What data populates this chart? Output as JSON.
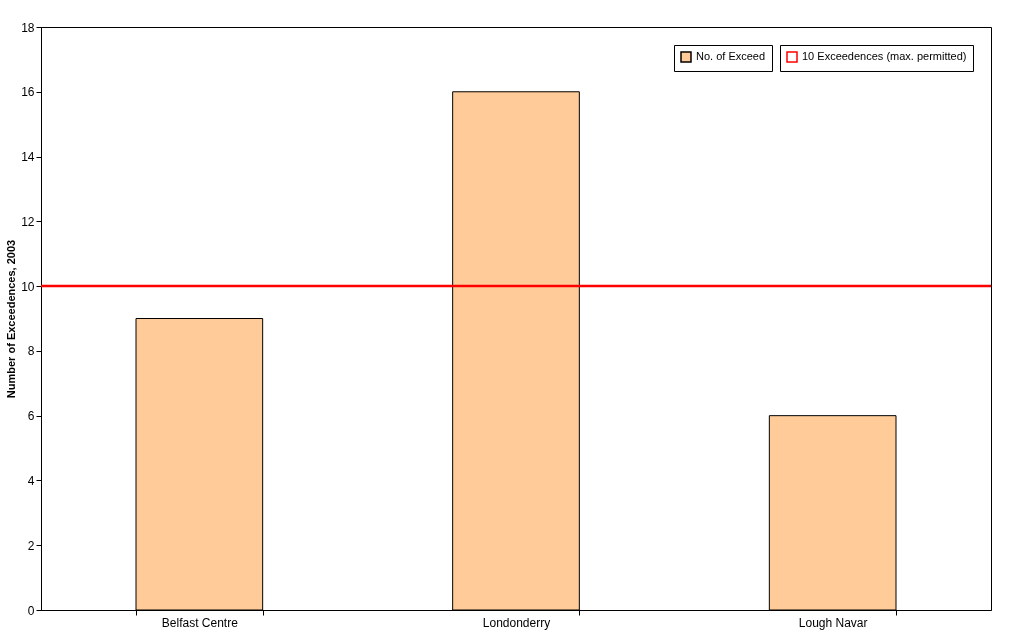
{
  "chart_data": {
    "type": "bar",
    "ylabel": "Number of Exceedences, 2003",
    "categories": [
      "Belfast Centre",
      "Londonderry",
      "Lough Navar"
    ],
    "series": [
      {
        "name": "No. of Exceed",
        "color": "#ffcc99",
        "values": [
          9,
          16,
          6
        ]
      }
    ],
    "ylim": [
      0,
      18
    ],
    "yticks": [
      0,
      2,
      4,
      6,
      8,
      10,
      12,
      14,
      16,
      18
    ],
    "grid": false,
    "legend": "top right",
    "ref_lines": [
      {
        "axis": "y",
        "value": 10,
        "label": "10 Exceedences (max. permitted)",
        "color": "#ff0000",
        "line_style": "solid"
      }
    ]
  }
}
